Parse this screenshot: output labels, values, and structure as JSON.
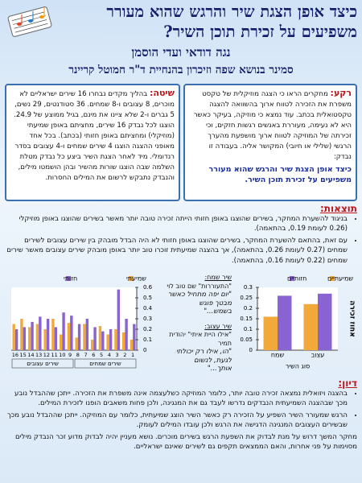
{
  "header": {
    "title": "כיצד אופן הצגת שיר והרגש שהוא מעורר משפיעים על זכירת תוכן השיר?",
    "authors": "נגה דודאי ועדי הוסמן",
    "seminar": "סמינר בנושא שפה וזיכרון בהנחיית ד\"ר חמוטל קריינר"
  },
  "background": {
    "heading": "רקע:",
    "text": "מחקרים הראו כי הצגה מוזיקלית של טקסט משפרת את הזכירה לטווח ארוך בהשוואה להצגה טקסטואלית בכתב. עוד נמצא כי מוזיקה, בעיקר כאשר היא לא נעימה, מעוררת באנשים רגשות חזקים, וכי זכירתה של המוזיקה לטווח ארוך מושפעת מהערך הרגשי (שלילי או חיובי) המקושר אליה. בעבודה זו נבדק:",
    "question": "כיצד אופן הצגת שיר והרגש שהוא מעורר משפיעים על זכירת תוכן השיר."
  },
  "method": {
    "heading": "שיטה:",
    "text": "בהליך מקדים נבחרו 16 שירים ישראליים לא מוכרים, 8 עצובים ו-8 שמחים. 36 סטודנטים, 29 נשים, 5 גברים ו-2 שלא ציינו את מינם, בגיל ממוצע של 24.9. הוצגו לכל נבדק 16 שירים, מחציתם באופן שמיעתי (מוזיקלי) ומחציתם באופן חזותי (בכתב). בכל אחד מאופני ההצגה הוצגו 4 שירים שמחים ו-4 עצובים בסדר רנדומלי. מיד לאחר הצגת השיר ביצע כל נבדק מטלת השלמה שבה הוצגו שורות מהשיר ובהן הושמטו מילים, והנבדק נתבקש לרשום את המילים החסרות."
  },
  "results": {
    "heading": "תוצאות:",
    "items": [
      "בניגוד להשערת המחקר, בשירים שהוצגו באופן חזותי הייתה זכירה טובה יותר מאשר בשירים שהוצגו באופן מוזיקלי (0.26 לעומת 0.19, בהתאמה).",
      "עם זאת, בהתאם להשערת המחקר, בשירים שהוצגו באופן חזותי לא היה הבדל מובהק בין שירים עצובים לשירים שמחים (0.27 לעומת 0.26, בהתאמה), אך בהצגה שמיעתית זוכרו טוב יותר באופן מובהק שירים עצובים מאשר שירים שמחים (0.22 לעומת 0.16, בהתאמה)."
    ]
  },
  "examples": {
    "happy_label": "שיר שמח:",
    "happy_source": "\"התעוררות\" שם טוב לוי",
    "happy_lyrics": [
      "\"יום יפה מתחיל כאשר",
      "מבטך פוגש",
      "בשמש...\""
    ],
    "sad_label": "שיר עצוב:",
    "sad_source": "\"אילו היית איתי\" יהודית תמיר",
    "sad_lyrics": [
      "\"הו, אילו רק יכולתי",
      "לגעת, לנשום",
      "אותך...\""
    ]
  },
  "chart_data": [
    {
      "type": "bar",
      "legend": "top",
      "categories": [
        "16",
        "15",
        "14",
        "13",
        "12",
        "11",
        "10",
        "9",
        "8",
        "7",
        "6",
        "5",
        "4",
        "3",
        "2",
        "1"
      ],
      "groups": [
        "שירים עצובים",
        "שירים שמחים"
      ],
      "series": [
        {
          "name": "שמיעתי",
          "color": "#f2a93b",
          "values": [
            0.25,
            0.3,
            0.22,
            0.25,
            0.2,
            0.3,
            0.15,
            0.26,
            0.12,
            0.25,
            0.1,
            0.23,
            0.15,
            0.2,
            0.17,
            0.1
          ]
        },
        {
          "name": "חזותי",
          "color": "#8a63d2",
          "values": [
            0.2,
            0.22,
            0.27,
            0.32,
            0.3,
            0.22,
            0.36,
            0.33,
            0.25,
            0.3,
            0.22,
            0.18,
            0.2,
            0.58,
            0.3,
            0.25
          ]
        }
      ],
      "ylim": [
        0,
        0.6
      ],
      "yticks": [
        0,
        0.1,
        0.2,
        0.3,
        0.4,
        0.5,
        0.6
      ]
    },
    {
      "type": "bar",
      "legend": "top",
      "categories": [
        "שמח",
        "עצוב"
      ],
      "x_label": "סוג השיר",
      "y_label": "אחוז זכירה",
      "series": [
        {
          "name": "שמיעתיים",
          "color": "#f2a93b",
          "values": [
            0.16,
            0.22
          ]
        },
        {
          "name": "חזותיים",
          "color": "#8a63d2",
          "values": [
            0.26,
            0.27
          ]
        }
      ],
      "ylim": [
        0,
        0.3
      ],
      "yticks": [
        0,
        0.05,
        0.1,
        0.15,
        0.2,
        0.25,
        0.3
      ]
    }
  ],
  "discussion": {
    "heading": "דיון:",
    "items": [
      "בהצגה ויזואלית נמצאה זכירה טובה יותר, כלומר המוזיקה כשלעצמה אינה משפרת את הזכירה. ייתכן שההבדל נובע מכך שבהצגה השמיעתית הנבדקים נדרשו לעבד גם את המנגינה, ולכן פחות משאבים הופנו לזכירת המילים.",
      "הרגש שמעורר השיר השפיע על הזכירה רק כאשר השיר הוצג שמיעתית, כלומר עם המוזיקה. ייתכן שההבדל נובע מכך שבשירים העצובים המנגינה הדגישה את הרגש ולכן עובדו המילים לעומק."
    ],
    "text": "מחקר המשך דרוש על מנת לבדוק את השפעת הרגש בשירים מוכרים. נושא מעניין יהיה לבדוק מדוע זכר הנבדק מילים מסוימות על פני אחרות, והאם הממצאים תקפים גם לשירים שאינם ישראליים."
  }
}
